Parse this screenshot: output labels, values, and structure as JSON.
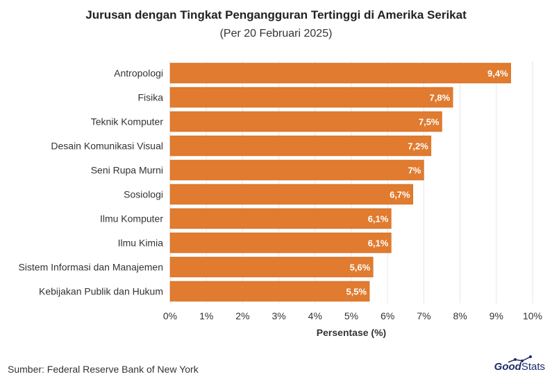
{
  "title": "Jurusan dengan Tingkat Pengangguran Tertinggi di Amerika Serikat",
  "subtitle": "(Per 20 Februari 2025)",
  "source": "Sumber: Federal Reserve Bank of New York",
  "logo": {
    "part1": "Good",
    "part2": "Stats"
  },
  "chart_data": {
    "type": "bar",
    "orientation": "horizontal",
    "categories": [
      "Antropologi",
      "Fisika",
      "Teknik Komputer",
      "Desain Komunikasi Visual",
      "Seni Rupa Murni",
      "Sosiologi",
      "Ilmu Komputer",
      "Ilmu Kimia",
      "Sistem Informasi dan Manajemen",
      "Kebijakan Publik dan Hukum"
    ],
    "values": [
      9.4,
      7.8,
      7.5,
      7.2,
      7.0,
      6.7,
      6.1,
      6.1,
      5.6,
      5.5
    ],
    "value_labels": [
      "9,4%",
      "7,8%",
      "7,5%",
      "7,2%",
      "7%",
      "6,7%",
      "6,1%",
      "6,1%",
      "5,6%",
      "5,5%"
    ],
    "xlabel": "Persentase (%)",
    "ylabel": "",
    "xlim": [
      0,
      10
    ],
    "x_ticks": [
      0,
      1,
      2,
      3,
      4,
      5,
      6,
      7,
      8,
      9,
      10
    ],
    "x_tick_labels": [
      "0%",
      "1%",
      "2%",
      "3%",
      "4%",
      "5%",
      "6%",
      "7%",
      "8%",
      "9%",
      "10%"
    ],
    "grid": "vertical",
    "colors": {
      "bar": "#e07b2f",
      "bar_stroke": "#c9681f",
      "grid": "#e6e6e6",
      "label": "#ffffff",
      "logo": "#1b2b6b"
    }
  }
}
